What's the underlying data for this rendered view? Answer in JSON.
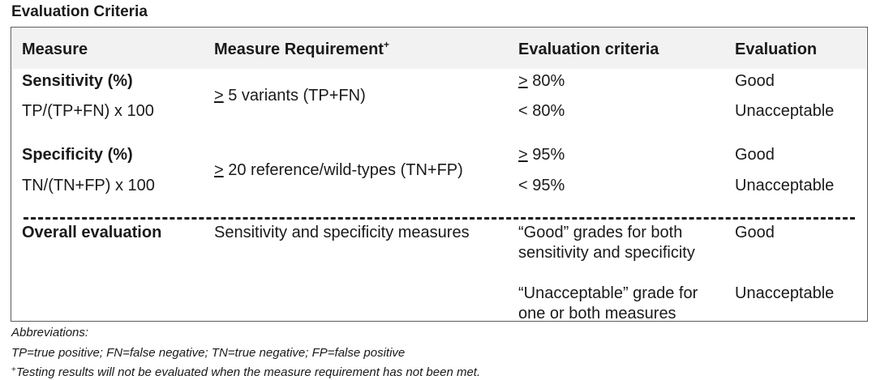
{
  "title": "Evaluation Criteria",
  "headers": {
    "measure": "Measure",
    "requirement": "Measure Requirement",
    "requirement_mark": "+",
    "criteria": "Evaluation criteria",
    "evaluation": "Evaluation"
  },
  "sensitivity": {
    "name": "Sensitivity (%)",
    "formula": "TP/(TP+FN) x 100",
    "req_symbol": ">",
    "req_text": " 5 variants (TP+FN)",
    "crit_good_symbol": ">",
    "crit_good_text": " 80%",
    "crit_bad": "< 80%",
    "eval_good": "Good",
    "eval_bad": "Unacceptable"
  },
  "specificity": {
    "name": "Specificity (%)",
    "formula": "TN/(TN+FP) x 100",
    "req_symbol": ">",
    "req_text": " 20 reference/wild-types (TN+FP)",
    "crit_good_symbol": ">",
    "crit_good_text": " 95%",
    "crit_bad": "< 95%",
    "eval_good": "Good",
    "eval_bad": "Unacceptable"
  },
  "overall": {
    "name": "Overall evaluation",
    "requirement": "Sensitivity and specificity measures",
    "crit_good_line1": "“Good” grades for both",
    "crit_good_line2": "sensitivity and specificity",
    "crit_bad_line1": "“Unacceptable” grade for",
    "crit_bad_line2": "one or both measures",
    "eval_good": "Good",
    "eval_bad": "Unacceptable"
  },
  "notes": {
    "abbrev_heading": "Abbreviations:",
    "abbrev_text": "TP=true positive; FN=false negative; TN=true negative; FP=false positive",
    "footnote_mark": "+",
    "footnote_text": "Testing results will not be evaluated when the measure requirement has not been met."
  }
}
